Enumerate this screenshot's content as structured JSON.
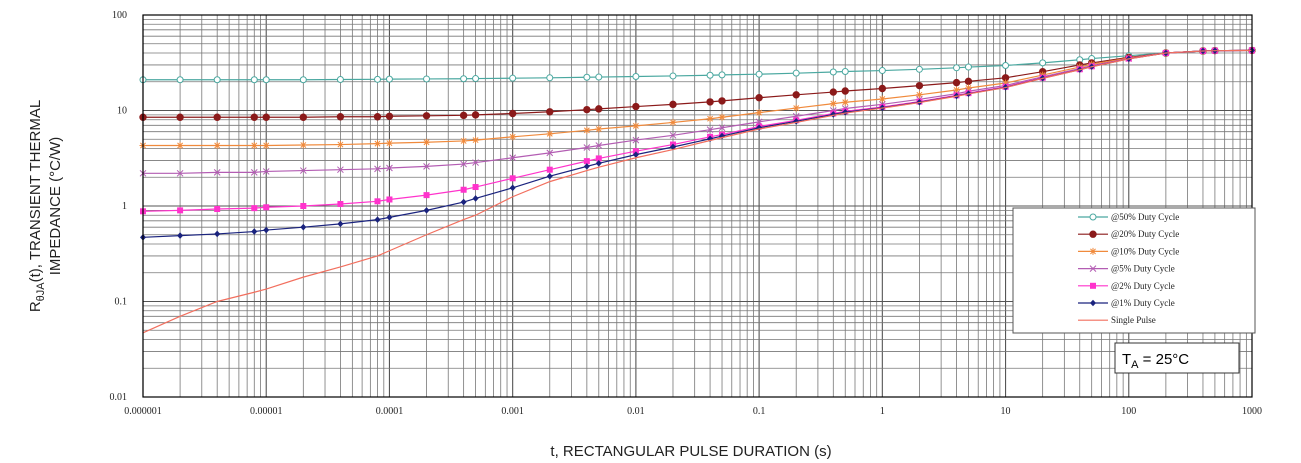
{
  "chart_data": {
    "type": "line",
    "title": "",
    "xlabel": "t, RECTANGULAR PULSE DURATION (s)",
    "ylabel_line1_pre": "R",
    "ylabel_line1_sub": "θJA",
    "ylabel_line1_post": "(t), TRANSIENT THERMAL",
    "ylabel_line2": "IMPEDANCE (°C/W)",
    "x_scale": "log",
    "y_scale": "log",
    "xlim": [
      1e-06,
      1000
    ],
    "ylim": [
      0.01,
      100
    ],
    "grid": true,
    "legend_position": "right",
    "x_tick_labels": [
      "0.000001",
      "0.00001",
      "0.0001",
      "0.001",
      "0.01",
      "0.1",
      "1",
      "10",
      "100",
      "1000"
    ],
    "y_tick_labels": [
      "0.01",
      "0.1",
      "1",
      "10",
      "100"
    ],
    "annotation": {
      "pre": "T",
      "sub": "A",
      "post": " = 25°C"
    },
    "series": [
      {
        "name": "@50% Duty Cycle",
        "color": "#4aa8a0",
        "marker": "circle-open",
        "x": [
          1e-06,
          2e-06,
          4e-06,
          8e-06,
          1e-05,
          2e-05,
          4e-05,
          8e-05,
          0.0001,
          0.0002,
          0.0004,
          0.0005,
          0.001,
          0.002,
          0.004,
          0.005,
          0.01,
          0.02,
          0.04,
          0.05,
          0.1,
          0.2,
          0.4,
          0.5,
          1,
          2,
          4,
          5,
          10,
          20,
          40,
          50,
          100,
          200,
          400,
          500,
          1000
        ],
        "y": [
          21,
          21,
          21,
          21,
          21,
          21,
          21.1,
          21.2,
          21.3,
          21.4,
          21.5,
          21.6,
          21.8,
          22,
          22.3,
          22.4,
          22.7,
          23,
          23.4,
          23.6,
          24,
          24.6,
          25.3,
          25.6,
          26.2,
          27,
          28,
          28.5,
          29.6,
          31.5,
          34,
          35,
          37.5,
          40,
          42,
          42.3,
          42.6
        ]
      },
      {
        "name": "@20% Duty Cycle",
        "color": "#8b1a1a",
        "marker": "circle-filled",
        "x": [
          1e-06,
          2e-06,
          4e-06,
          8e-06,
          1e-05,
          2e-05,
          4e-05,
          8e-05,
          0.0001,
          0.0002,
          0.0004,
          0.0005,
          0.001,
          0.002,
          0.004,
          0.005,
          0.01,
          0.02,
          0.04,
          0.05,
          0.1,
          0.2,
          0.4,
          0.5,
          1,
          2,
          4,
          5,
          10,
          20,
          40,
          50,
          100,
          200,
          400,
          500,
          1000
        ],
        "y": [
          8.5,
          8.5,
          8.5,
          8.5,
          8.5,
          8.5,
          8.6,
          8.6,
          8.7,
          8.8,
          8.9,
          9,
          9.3,
          9.7,
          10.2,
          10.4,
          11,
          11.6,
          12.3,
          12.6,
          13.6,
          14.6,
          15.6,
          16,
          17,
          18.2,
          19.6,
          20.2,
          22,
          25.5,
          30,
          31.5,
          36,
          40,
          42,
          42.3,
          42.6
        ]
      },
      {
        "name": "@10% Duty Cycle",
        "color": "#f08a3c",
        "marker": "star",
        "x": [
          1e-06,
          2e-06,
          4e-06,
          8e-06,
          1e-05,
          2e-05,
          4e-05,
          8e-05,
          0.0001,
          0.0002,
          0.0004,
          0.0005,
          0.001,
          0.002,
          0.004,
          0.005,
          0.01,
          0.02,
          0.04,
          0.05,
          0.1,
          0.2,
          0.4,
          0.5,
          1,
          2,
          4,
          5,
          10,
          20,
          40,
          50,
          100,
          200,
          400,
          500,
          1000
        ],
        "y": [
          4.3,
          4.3,
          4.3,
          4.3,
          4.3,
          4.35,
          4.4,
          4.5,
          4.55,
          4.65,
          4.8,
          4.9,
          5.3,
          5.7,
          6.2,
          6.4,
          6.9,
          7.5,
          8.2,
          8.5,
          9.5,
          10.6,
          11.8,
          12.2,
          13.2,
          14.6,
          16.4,
          17.2,
          19.4,
          23.5,
          28.5,
          30.5,
          35.5,
          40,
          42,
          42.3,
          42.6
        ]
      },
      {
        "name": "@5% Duty Cycle",
        "color": "#b35db3",
        "marker": "x",
        "x": [
          1e-06,
          2e-06,
          4e-06,
          8e-06,
          1e-05,
          2e-05,
          4e-05,
          8e-05,
          0.0001,
          0.0002,
          0.0004,
          0.0005,
          0.001,
          0.002,
          0.004,
          0.005,
          0.01,
          0.02,
          0.04,
          0.05,
          0.1,
          0.2,
          0.4,
          0.5,
          1,
          2,
          4,
          5,
          10,
          20,
          40,
          50,
          100,
          200,
          400,
          500,
          1000
        ],
        "y": [
          2.2,
          2.2,
          2.25,
          2.25,
          2.3,
          2.35,
          2.4,
          2.45,
          2.5,
          2.6,
          2.75,
          2.85,
          3.2,
          3.6,
          4.1,
          4.3,
          4.9,
          5.5,
          6.3,
          6.6,
          7.6,
          8.7,
          10,
          10.5,
          11.6,
          13.1,
          15,
          15.9,
          18.3,
          22.5,
          27.5,
          29.5,
          35,
          40,
          42,
          42.3,
          42.6
        ]
      },
      {
        "name": "@2% Duty Cycle",
        "color": "#ff33cc",
        "marker": "square",
        "x": [
          1e-06,
          2e-06,
          4e-06,
          8e-06,
          1e-05,
          2e-05,
          4e-05,
          8e-05,
          0.0001,
          0.0002,
          0.0004,
          0.0005,
          0.001,
          0.002,
          0.004,
          0.005,
          0.01,
          0.02,
          0.04,
          0.05,
          0.1,
          0.2,
          0.4,
          0.5,
          1,
          2,
          4,
          5,
          10,
          20,
          40,
          50,
          100,
          200,
          400,
          500,
          1000
        ],
        "y": [
          0.88,
          0.9,
          0.93,
          0.95,
          0.97,
          1,
          1.05,
          1.12,
          1.17,
          1.3,
          1.48,
          1.58,
          1.95,
          2.4,
          2.95,
          3.15,
          3.75,
          4.4,
          5.3,
          5.6,
          6.8,
          7.9,
          9.3,
          9.8,
          10.9,
          12.4,
          14.4,
          15.2,
          17.7,
          22,
          27,
          29,
          35,
          40,
          42,
          42.3,
          42.6
        ]
      },
      {
        "name": "@1% Duty Cycle",
        "color": "#1a237e",
        "marker": "diamond",
        "x": [
          1e-06,
          2e-06,
          4e-06,
          8e-06,
          1e-05,
          2e-05,
          4e-05,
          8e-05,
          0.0001,
          0.0002,
          0.0004,
          0.0005,
          0.001,
          0.002,
          0.004,
          0.005,
          0.01,
          0.02,
          0.04,
          0.05,
          0.1,
          0.2,
          0.4,
          0.5,
          1,
          2,
          4,
          5,
          10,
          20,
          40,
          50,
          100,
          200,
          400,
          500,
          1000
        ],
        "y": [
          0.47,
          0.49,
          0.51,
          0.54,
          0.56,
          0.6,
          0.65,
          0.72,
          0.76,
          0.9,
          1.1,
          1.2,
          1.55,
          2.05,
          2.6,
          2.8,
          3.45,
          4.15,
          5.05,
          5.4,
          6.6,
          7.7,
          9.1,
          9.6,
          10.7,
          12.2,
          14.2,
          15,
          17.5,
          21.8,
          26.8,
          28.8,
          34.8,
          40,
          42,
          42.3,
          42.6
        ]
      },
      {
        "name": "Single Pulse",
        "color": "#f26f5e",
        "marker": "none",
        "x": [
          1e-06,
          2e-06,
          4e-06,
          8e-06,
          1e-05,
          2e-05,
          4e-05,
          8e-05,
          0.0001,
          0.0002,
          0.0004,
          0.0005,
          0.001,
          0.002,
          0.004,
          0.005,
          0.01,
          0.02,
          0.04,
          0.05,
          0.1,
          0.2,
          0.4,
          0.5,
          1,
          2,
          4,
          5,
          10,
          20,
          40,
          50,
          100,
          200,
          400,
          500,
          1000
        ],
        "y": [
          0.047,
          0.07,
          0.1,
          0.125,
          0.135,
          0.18,
          0.23,
          0.3,
          0.34,
          0.5,
          0.72,
          0.8,
          1.25,
          1.8,
          2.35,
          2.55,
          3.2,
          3.9,
          4.85,
          5.2,
          6.4,
          7.5,
          8.9,
          9.4,
          10.6,
          12.1,
          14.1,
          14.9,
          17.4,
          21.7,
          26.7,
          28.7,
          34.7,
          40,
          42,
          42.3,
          42.6
        ]
      }
    ]
  }
}
